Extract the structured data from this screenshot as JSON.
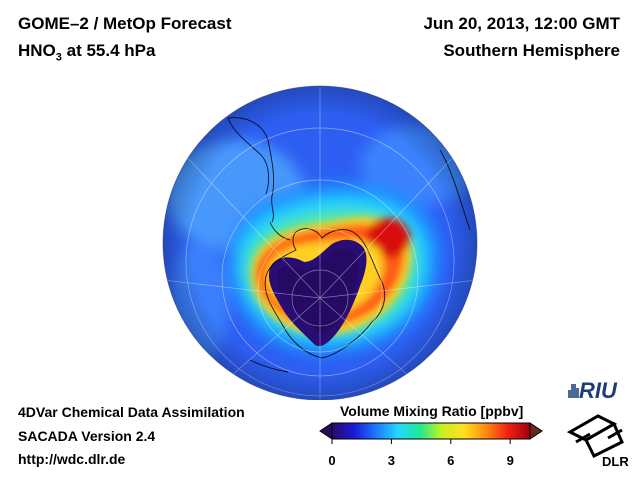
{
  "header": {
    "title_line1": "GOME–2 / MetOp Forecast",
    "title_hno": "HNO",
    "title_sub": "3",
    "title_rest": " at 55.4 hPa",
    "date": "Jun 20, 2013, 12:00 GMT",
    "region": "Southern Hemisphere"
  },
  "footer": {
    "line1": "4DVar Chemical Data Assimilation",
    "line2": "SACADA Version 2.4",
    "line3": "http://wdc.dlr.de"
  },
  "colorbar": {
    "title": "Volume Mixing Ratio [ppbv]",
    "ticks": [
      "0",
      "3",
      "6",
      "9"
    ],
    "min": 0,
    "max": 10,
    "colors": [
      "#2a0a6a",
      "#1a1ad8",
      "#1e78ff",
      "#22d8ff",
      "#22e890",
      "#c8f020",
      "#ffe020",
      "#ff8a10",
      "#f02010",
      "#a00010"
    ]
  },
  "logos": {
    "riu": "RIU",
    "dlr": "DLR"
  }
}
